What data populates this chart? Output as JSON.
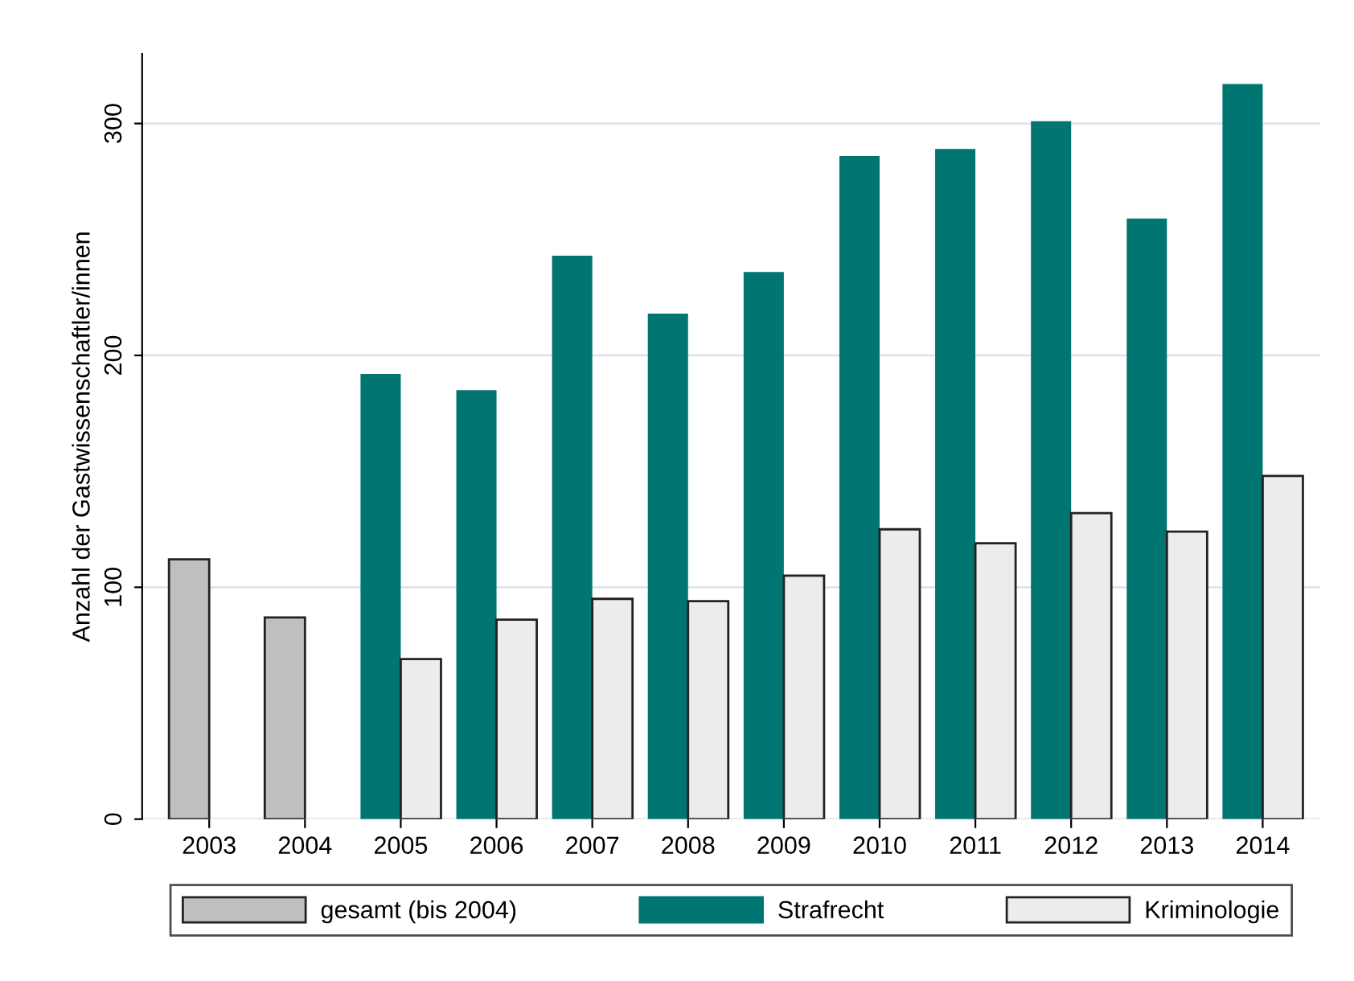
{
  "chart_data": {
    "type": "bar",
    "ylabel": "Anzahl der Gastwissenschaftler/innen",
    "categories": [
      "2003",
      "2004",
      "2005",
      "2006",
      "2007",
      "2008",
      "2009",
      "2010",
      "2011",
      "2012",
      "2013",
      "2014"
    ],
    "series": [
      {
        "name": "gesamt (bis 2004)",
        "color": "#c0c0c0",
        "values": [
          112,
          87,
          null,
          null,
          null,
          null,
          null,
          null,
          null,
          null,
          null,
          null
        ]
      },
      {
        "name": "Strafrecht",
        "color": "#007571",
        "values": [
          null,
          null,
          192,
          185,
          243,
          218,
          236,
          286,
          289,
          301,
          259,
          317
        ]
      },
      {
        "name": "Kriminologie",
        "color": "#ececec",
        "values": [
          null,
          null,
          69,
          86,
          95,
          94,
          105,
          125,
          119,
          132,
          124,
          148
        ]
      }
    ],
    "ylim": [
      0,
      330
    ],
    "yticks": [
      0,
      100,
      200,
      300
    ],
    "grid": "y",
    "legend": "bottom"
  }
}
